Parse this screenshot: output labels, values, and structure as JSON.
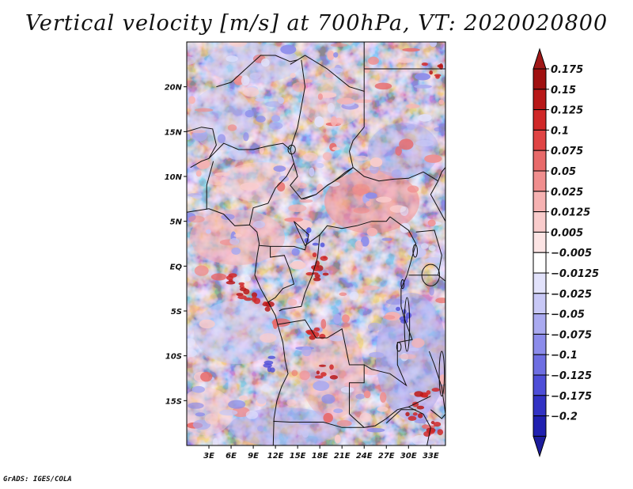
{
  "title": "Vertical velocity [m/s] at 700hPa, VT: 2020020800",
  "credit": "GrADS: IGES/COLA",
  "map": {
    "lon_range": [
      0,
      35
    ],
    "lat_range": [
      -20,
      25
    ],
    "lat_ticks": [
      {
        "value": 20,
        "label": "20N"
      },
      {
        "value": 15,
        "label": "15N"
      },
      {
        "value": 10,
        "label": "10N"
      },
      {
        "value": 5,
        "label": "5N"
      },
      {
        "value": 0,
        "label": "EQ"
      },
      {
        "value": -5,
        "label": "5S"
      },
      {
        "value": -10,
        "label": "10S"
      },
      {
        "value": -15,
        "label": "15S"
      }
    ],
    "lon_ticks": [
      {
        "value": 3,
        "label": "3E"
      },
      {
        "value": 6,
        "label": "6E"
      },
      {
        "value": 9,
        "label": "9E"
      },
      {
        "value": 12,
        "label": "12E"
      },
      {
        "value": 15,
        "label": "15E"
      },
      {
        "value": 18,
        "label": "18E"
      },
      {
        "value": 21,
        "label": "21E"
      },
      {
        "value": 24,
        "label": "24E"
      },
      {
        "value": 27,
        "label": "27E"
      },
      {
        "value": 30,
        "label": "30E"
      },
      {
        "value": 33,
        "label": "33E"
      }
    ]
  },
  "colorbar": {
    "levels": [
      {
        "label": "0.175",
        "color": "#a01010"
      },
      {
        "label": "0.15",
        "color": "#b81818"
      },
      {
        "label": "0.125",
        "color": "#d02828"
      },
      {
        "label": "0.1",
        "color": "#e04444"
      },
      {
        "label": "0.075",
        "color": "#e86a6a"
      },
      {
        "label": "0.05",
        "color": "#f08e8e"
      },
      {
        "label": "0.025",
        "color": "#f6b2b2"
      },
      {
        "label": "0.0125",
        "color": "#f9cccc"
      },
      {
        "label": "0.005",
        "color": "#fce4e4"
      },
      {
        "label": "-0.005",
        "color": "#ffffff"
      },
      {
        "label": "-0.0125",
        "color": "#e2e2fb"
      },
      {
        "label": "-0.025",
        "color": "#c8c8f6"
      },
      {
        "label": "-0.05",
        "color": "#aaaaf0"
      },
      {
        "label": "-0.075",
        "color": "#8c8ceb"
      },
      {
        "label": "-0.1",
        "color": "#6e6ee2"
      },
      {
        "label": "-0.125",
        "color": "#4e4ed8"
      },
      {
        "label": "-0.175",
        "color": "#3232c4"
      },
      {
        "label": "-0.2",
        "color": "#2020b0"
      }
    ],
    "top_arrow_color": "#a01818",
    "bottom_arrow_color": "#1c1c9c",
    "extra_segment_color": "#2a2aba"
  }
}
